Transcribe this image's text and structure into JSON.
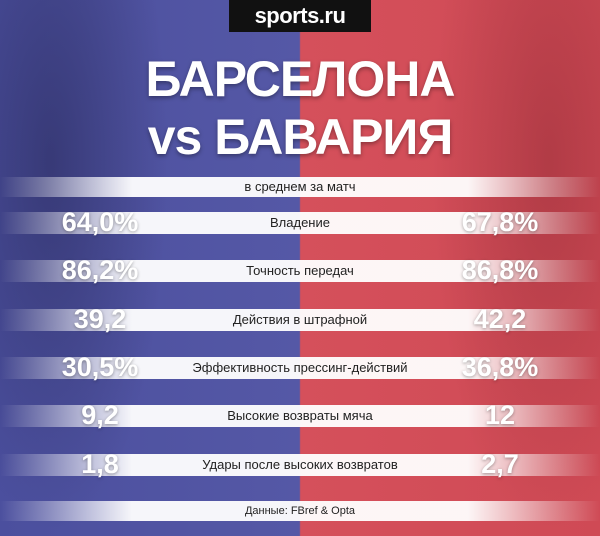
{
  "header": {
    "logo": "sports.ru",
    "title_line1": "БАРСЕЛОНА",
    "title_line2": "vs БАВАРИЯ",
    "subtitle": "в среднем за матч"
  },
  "table": {
    "rows": [
      [
        "64,0%",
        "Владение",
        "67,8%"
      ],
      [
        "86,2%",
        "Точность передач",
        "86,8%"
      ],
      [
        "39,2",
        "Действия в штрафной",
        "42,2"
      ],
      [
        "30,5%",
        "Эффективность прессинг-действий",
        "36,8%"
      ],
      [
        "9,2",
        "Высокие возвраты мяча",
        "12"
      ],
      [
        "1,8",
        "Удары после высоких возвратов",
        "2,7"
      ]
    ]
  },
  "footer": {
    "source": "Данные: FBref & Opta"
  }
}
